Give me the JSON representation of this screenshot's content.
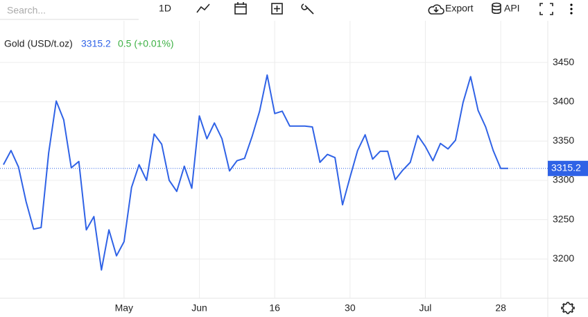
{
  "toolbar": {
    "search_placeholder": "Search...",
    "interval": "1D",
    "export": "Export",
    "api": "API"
  },
  "chart_data": {
    "type": "line",
    "categories": [
      null,
      null,
      null,
      null,
      null,
      null,
      null,
      null,
      null,
      null,
      null,
      null,
      null,
      null,
      null,
      null,
      "May",
      null,
      null,
      null,
      null,
      null,
      null,
      null,
      null,
      null,
      "Jun",
      null,
      null,
      null,
      null,
      null,
      null,
      null,
      null,
      null,
      "16",
      null,
      null,
      null,
      null,
      null,
      null,
      null,
      null,
      null,
      "30",
      null,
      null,
      null,
      null,
      null,
      null,
      null,
      null,
      null,
      "Jul",
      null,
      null,
      null,
      null,
      null,
      null,
      null,
      null,
      null,
      "28",
      null
    ],
    "series": [
      {
        "name": "Gold (USD/t.oz)",
        "color": "#2f62e6",
        "values": [
          3320,
          3338,
          3317,
          3273,
          3238,
          3240,
          3335,
          3401,
          3377,
          3316,
          3324,
          3237,
          3254,
          3186,
          3237,
          3204,
          3222,
          3291,
          3320,
          3300,
          3359,
          3346,
          3300,
          3286,
          3318,
          3290,
          3382,
          3353,
          3373,
          3353,
          3312,
          3325,
          3328,
          3356,
          3388,
          3434,
          3385,
          3388,
          3369,
          3369,
          3369,
          3368,
          3323,
          3333,
          3329,
          3269,
          3304,
          3338,
          3358,
          3327,
          3337,
          3337,
          3301,
          3313,
          3323,
          3357,
          3343,
          3325,
          3347,
          3340,
          3351,
          3399,
          3432,
          3389,
          3368,
          3338,
          3315.2,
          3315.2
        ]
      }
    ],
    "last_label": "3315.2",
    "change_label": "0.5 (+0.01%)",
    "change_color": "#3cb043",
    "ylim": [
      3150,
      3503
    ],
    "yticks": [
      3200,
      3250,
      3300,
      3350,
      3400,
      3450
    ],
    "grid": true
  }
}
